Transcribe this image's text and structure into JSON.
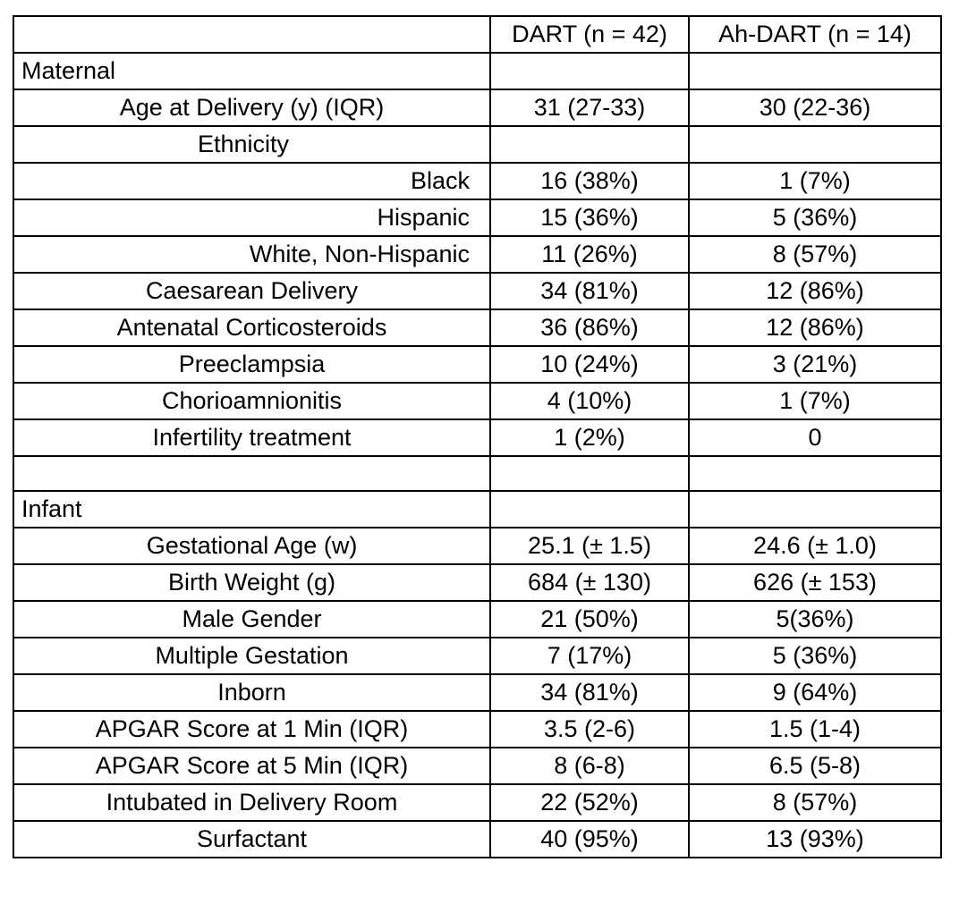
{
  "table": {
    "header": {
      "label": "",
      "dart": "DART (n = 42)",
      "ahdart": "Ah-DART (n = 14)"
    },
    "rows": [
      {
        "label": "Maternal",
        "dart": "",
        "ahdart": "",
        "align": "left"
      },
      {
        "label": "Age at Delivery (y) (IQR)",
        "dart": "31 (27-33)",
        "ahdart": "30 (22-36)",
        "align": "center"
      },
      {
        "label": "Ethnicity",
        "dart": "",
        "ahdart": "",
        "align": "ethnicity"
      },
      {
        "label": "Black",
        "dart": "16 (38%)",
        "ahdart": "1 (7%)",
        "align": "right"
      },
      {
        "label": "Hispanic",
        "dart": "15 (36%)",
        "ahdart": "5 (36%)",
        "align": "right"
      },
      {
        "label": "White, Non-Hispanic",
        "dart": "11 (26%)",
        "ahdart": "8 (57%)",
        "align": "right"
      },
      {
        "label": "Caesarean Delivery",
        "dart": "34 (81%)",
        "ahdart": "12 (86%)",
        "align": "center"
      },
      {
        "label": "Antenatal Corticosteroids",
        "dart": "36 (86%)",
        "ahdart": "12 (86%)",
        "align": "center"
      },
      {
        "label": "Preeclampsia",
        "dart": "10 (24%)",
        "ahdart": "3 (21%)",
        "align": "center"
      },
      {
        "label": "Chorioamnionitis",
        "dart": "4 (10%)",
        "ahdart": "1 (7%)",
        "align": "center"
      },
      {
        "label": "Infertility treatment",
        "dart": "1 (2%)",
        "ahdart": "0",
        "align": "center"
      },
      {
        "label": "",
        "dart": "",
        "ahdart": "",
        "align": "center"
      },
      {
        "label": "Infant",
        "dart": "",
        "ahdart": "",
        "align": "left"
      },
      {
        "label": "Gestational Age (w)",
        "dart": "25.1 (± 1.5)",
        "ahdart": "24.6 (± 1.0)",
        "align": "center"
      },
      {
        "label": "Birth Weight (g)",
        "dart": "684 (± 130)",
        "ahdart": "626 (± 153)",
        "align": "center"
      },
      {
        "label": "Male Gender",
        "dart": "21 (50%)",
        "ahdart": "5(36%)",
        "align": "center"
      },
      {
        "label": "Multiple Gestation",
        "dart": "7 (17%)",
        "ahdart": "5 (36%)",
        "align": "center"
      },
      {
        "label": "Inborn",
        "dart": "34 (81%)",
        "ahdart": "9 (64%)",
        "align": "center"
      },
      {
        "label": "APGAR Score at 1 Min (IQR)",
        "dart": "3.5 (2-6)",
        "ahdart": "1.5 (1-4)",
        "align": "center"
      },
      {
        "label": "APGAR Score at 5 Min (IQR)",
        "dart": "8 (6-8)",
        "ahdart": "6.5 (5-8)",
        "align": "center"
      },
      {
        "label": "Intubated in Delivery Room",
        "dart": "22 (52%)",
        "ahdart": "8 (57%)",
        "align": "center"
      },
      {
        "label": "Surfactant",
        "dart": "40 (95%)",
        "ahdart": "13 (93%)",
        "align": "center"
      }
    ]
  }
}
